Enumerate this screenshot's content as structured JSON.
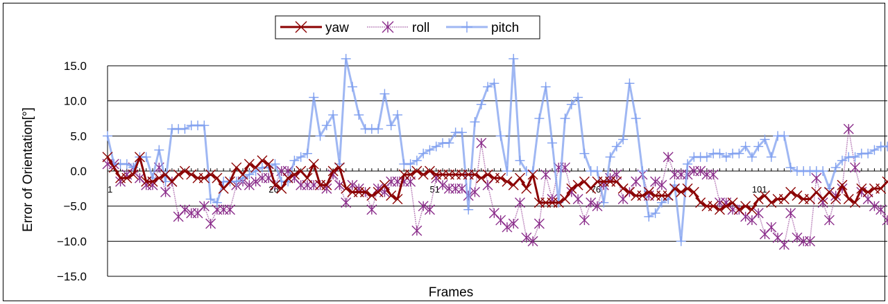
{
  "chart_data": {
    "type": "line",
    "xlabel": "Frames",
    "ylabel": "Error of Orientation[°]",
    "ylim": [
      -15,
      15
    ],
    "yticks": [
      -15,
      -10,
      -5,
      0,
      5,
      10,
      15
    ],
    "ytick_labels": [
      "−15.0",
      "−10.0",
      "−5.0",
      "0.0",
      "5.0",
      "10.0",
      "15.0"
    ],
    "x_category_labels": [
      {
        "index": 1,
        "label": "1"
      },
      {
        "index": 26,
        "label": "26"
      },
      {
        "index": 51,
        "label": "51"
      },
      {
        "index": 76,
        "label": "76"
      },
      {
        "index": 101,
        "label": "101"
      }
    ],
    "n_frames": 122,
    "grid": "horizontal",
    "legend": "top-center",
    "series": [
      {
        "name": "yaw",
        "color": "#8b0000",
        "marker": "x",
        "values": [
          2.0,
          0.5,
          -1.0,
          -1.0,
          -0.5,
          2.0,
          -1.5,
          -1.5,
          -1.0,
          -0.5,
          -1.5,
          -0.5,
          0.0,
          -0.5,
          -1.0,
          -1.0,
          -0.5,
          -1.0,
          -2.5,
          -1.5,
          0.5,
          -0.5,
          1.0,
          0.5,
          1.5,
          1.0,
          -2.0,
          -2.5,
          -1.0,
          -0.5,
          0.0,
          -1.0,
          1.0,
          -2.0,
          -2.0,
          0.0,
          0.5,
          -2.5,
          -3.0,
          -3.0,
          -3.0,
          -3.5,
          -3.0,
          -2.0,
          -3.5,
          -4.0,
          -0.5,
          -0.5,
          0.0,
          -0.5,
          0.0,
          -0.5,
          -0.5,
          -0.5,
          -0.5,
          -0.5,
          -0.5,
          -0.5,
          -1.0,
          -0.5,
          -1.0,
          -1.0,
          -1.5,
          -2.0,
          -1.0,
          -2.5,
          -0.5,
          -4.5,
          -4.5,
          -4.5,
          -4.5,
          -4.0,
          -2.5,
          -2.0,
          -1.5,
          -2.5,
          -1.5,
          -1.5,
          -1.5,
          -1.5,
          -2.5,
          -3.0,
          -3.5,
          -3.5,
          -3.0,
          -3.5,
          -3.5,
          -3.5,
          -2.5,
          -3.0,
          -2.5,
          -3.0,
          -4.5,
          -5.0,
          -5.0,
          -5.5,
          -5.0,
          -4.5,
          -5.5,
          -5.0,
          -5.5,
          -4.0,
          -3.5,
          -4.5,
          -4.0,
          -4.0,
          -3.0,
          -3.5,
          -4.0,
          -4.0,
          -3.0,
          -4.0,
          -3.0,
          -4.0,
          -2.0,
          -4.0,
          -4.5,
          -2.5,
          -3.0,
          -2.5,
          -2.5,
          -1.5
        ]
      },
      {
        "name": "roll",
        "color": "#8a2c8a",
        "marker": "asterisk",
        "values": [
          1.0,
          1.0,
          -1.5,
          -0.5,
          0.5,
          -1.0,
          -2.0,
          -2.0,
          0.5,
          -3.0,
          -1.5,
          -6.5,
          -5.5,
          -6.0,
          -6.0,
          -5.0,
          -7.5,
          -5.5,
          -5.5,
          -5.5,
          -2.0,
          -1.5,
          -2.0,
          -1.5,
          -1.0,
          -1.0,
          -2.0,
          0.0,
          0.0,
          -1.0,
          -2.0,
          -2.0,
          -2.0,
          -2.0,
          -2.5,
          -0.5,
          -2.0,
          -4.5,
          -2.0,
          -2.5,
          -3.0,
          -5.5,
          -2.5,
          -3.0,
          -1.5,
          -1.5,
          -1.5,
          -1.5,
          -8.5,
          -5.0,
          -5.5,
          -1.0,
          -2.0,
          -2.5,
          -2.5,
          -2.5,
          -3.5,
          -3.0,
          4.0,
          -2.0,
          -6.0,
          -7.0,
          -8.0,
          -7.5,
          -4.5,
          -9.5,
          -10.0,
          -7.5,
          -0.5,
          -4.0,
          0.5,
          0.5,
          -3.0,
          -4.0,
          -7.0,
          -4.5,
          -5.0,
          -2.0,
          -1.0,
          -0.5,
          -4.0,
          -3.0,
          -1.5,
          -0.5,
          -3.5,
          -1.5,
          -2.0,
          2.0,
          -0.5,
          -0.5,
          -0.5,
          0.0,
          0.0,
          -0.5,
          -0.5,
          -4.5,
          -4.5,
          -5.5,
          -5.5,
          -6.5,
          -7.0,
          -6.0,
          -9.0,
          -8.0,
          -9.5,
          -10.5,
          -6.0,
          -9.5,
          -10.0,
          -10.0,
          -1.0,
          -4.5,
          -7.0,
          -3.5,
          -2.5,
          6.0,
          0.5,
          -3.0,
          -4.0,
          -5.0,
          -5.5,
          -7.0
        ]
      },
      {
        "name": "pitch",
        "color": "#7f9fef",
        "marker": "plus",
        "values": [
          5.0,
          1.0,
          1.0,
          1.0,
          0.5,
          2.0,
          2.0,
          -1.0,
          3.0,
          -1.5,
          6.0,
          6.0,
          6.0,
          6.5,
          6.5,
          6.5,
          -4.0,
          -4.5,
          -1.5,
          -1.5,
          -1.5,
          -1.0,
          -0.5,
          0.0,
          0.5,
          0.5,
          1.0,
          -1.5,
          -1.5,
          1.5,
          2.0,
          2.5,
          10.5,
          5.0,
          6.5,
          8.0,
          1.0,
          16.0,
          12.0,
          8.0,
          6.0,
          6.0,
          6.0,
          11.0,
          6.5,
          8.0,
          1.0,
          1.0,
          1.5,
          2.5,
          3.0,
          3.5,
          4.0,
          4.0,
          5.5,
          5.5,
          -5.5,
          7.0,
          9.5,
          12.0,
          12.5,
          5.0,
          0.0,
          16.0,
          1.5,
          0.0,
          0.0,
          7.5,
          12.0,
          4.0,
          -4.5,
          7.5,
          9.5,
          10.5,
          2.5,
          0.0,
          0.0,
          -4.5,
          2.0,
          3.5,
          4.5,
          12.5,
          7.5,
          0.0,
          -6.5,
          -6.0,
          -4.5,
          -4.0,
          -2.0,
          -10.0,
          1.0,
          2.0,
          2.0,
          2.0,
          2.5,
          2.5,
          2.0,
          2.5,
          2.5,
          3.5,
          2.0,
          3.5,
          4.5,
          2.0,
          5.0,
          5.0,
          0.5,
          0.0,
          0.0,
          0.0,
          0.0,
          0.0,
          -2.5,
          0.5,
          1.5,
          2.0,
          2.0,
          2.5,
          2.5,
          3.0,
          3.5,
          3.5
        ]
      }
    ]
  }
}
